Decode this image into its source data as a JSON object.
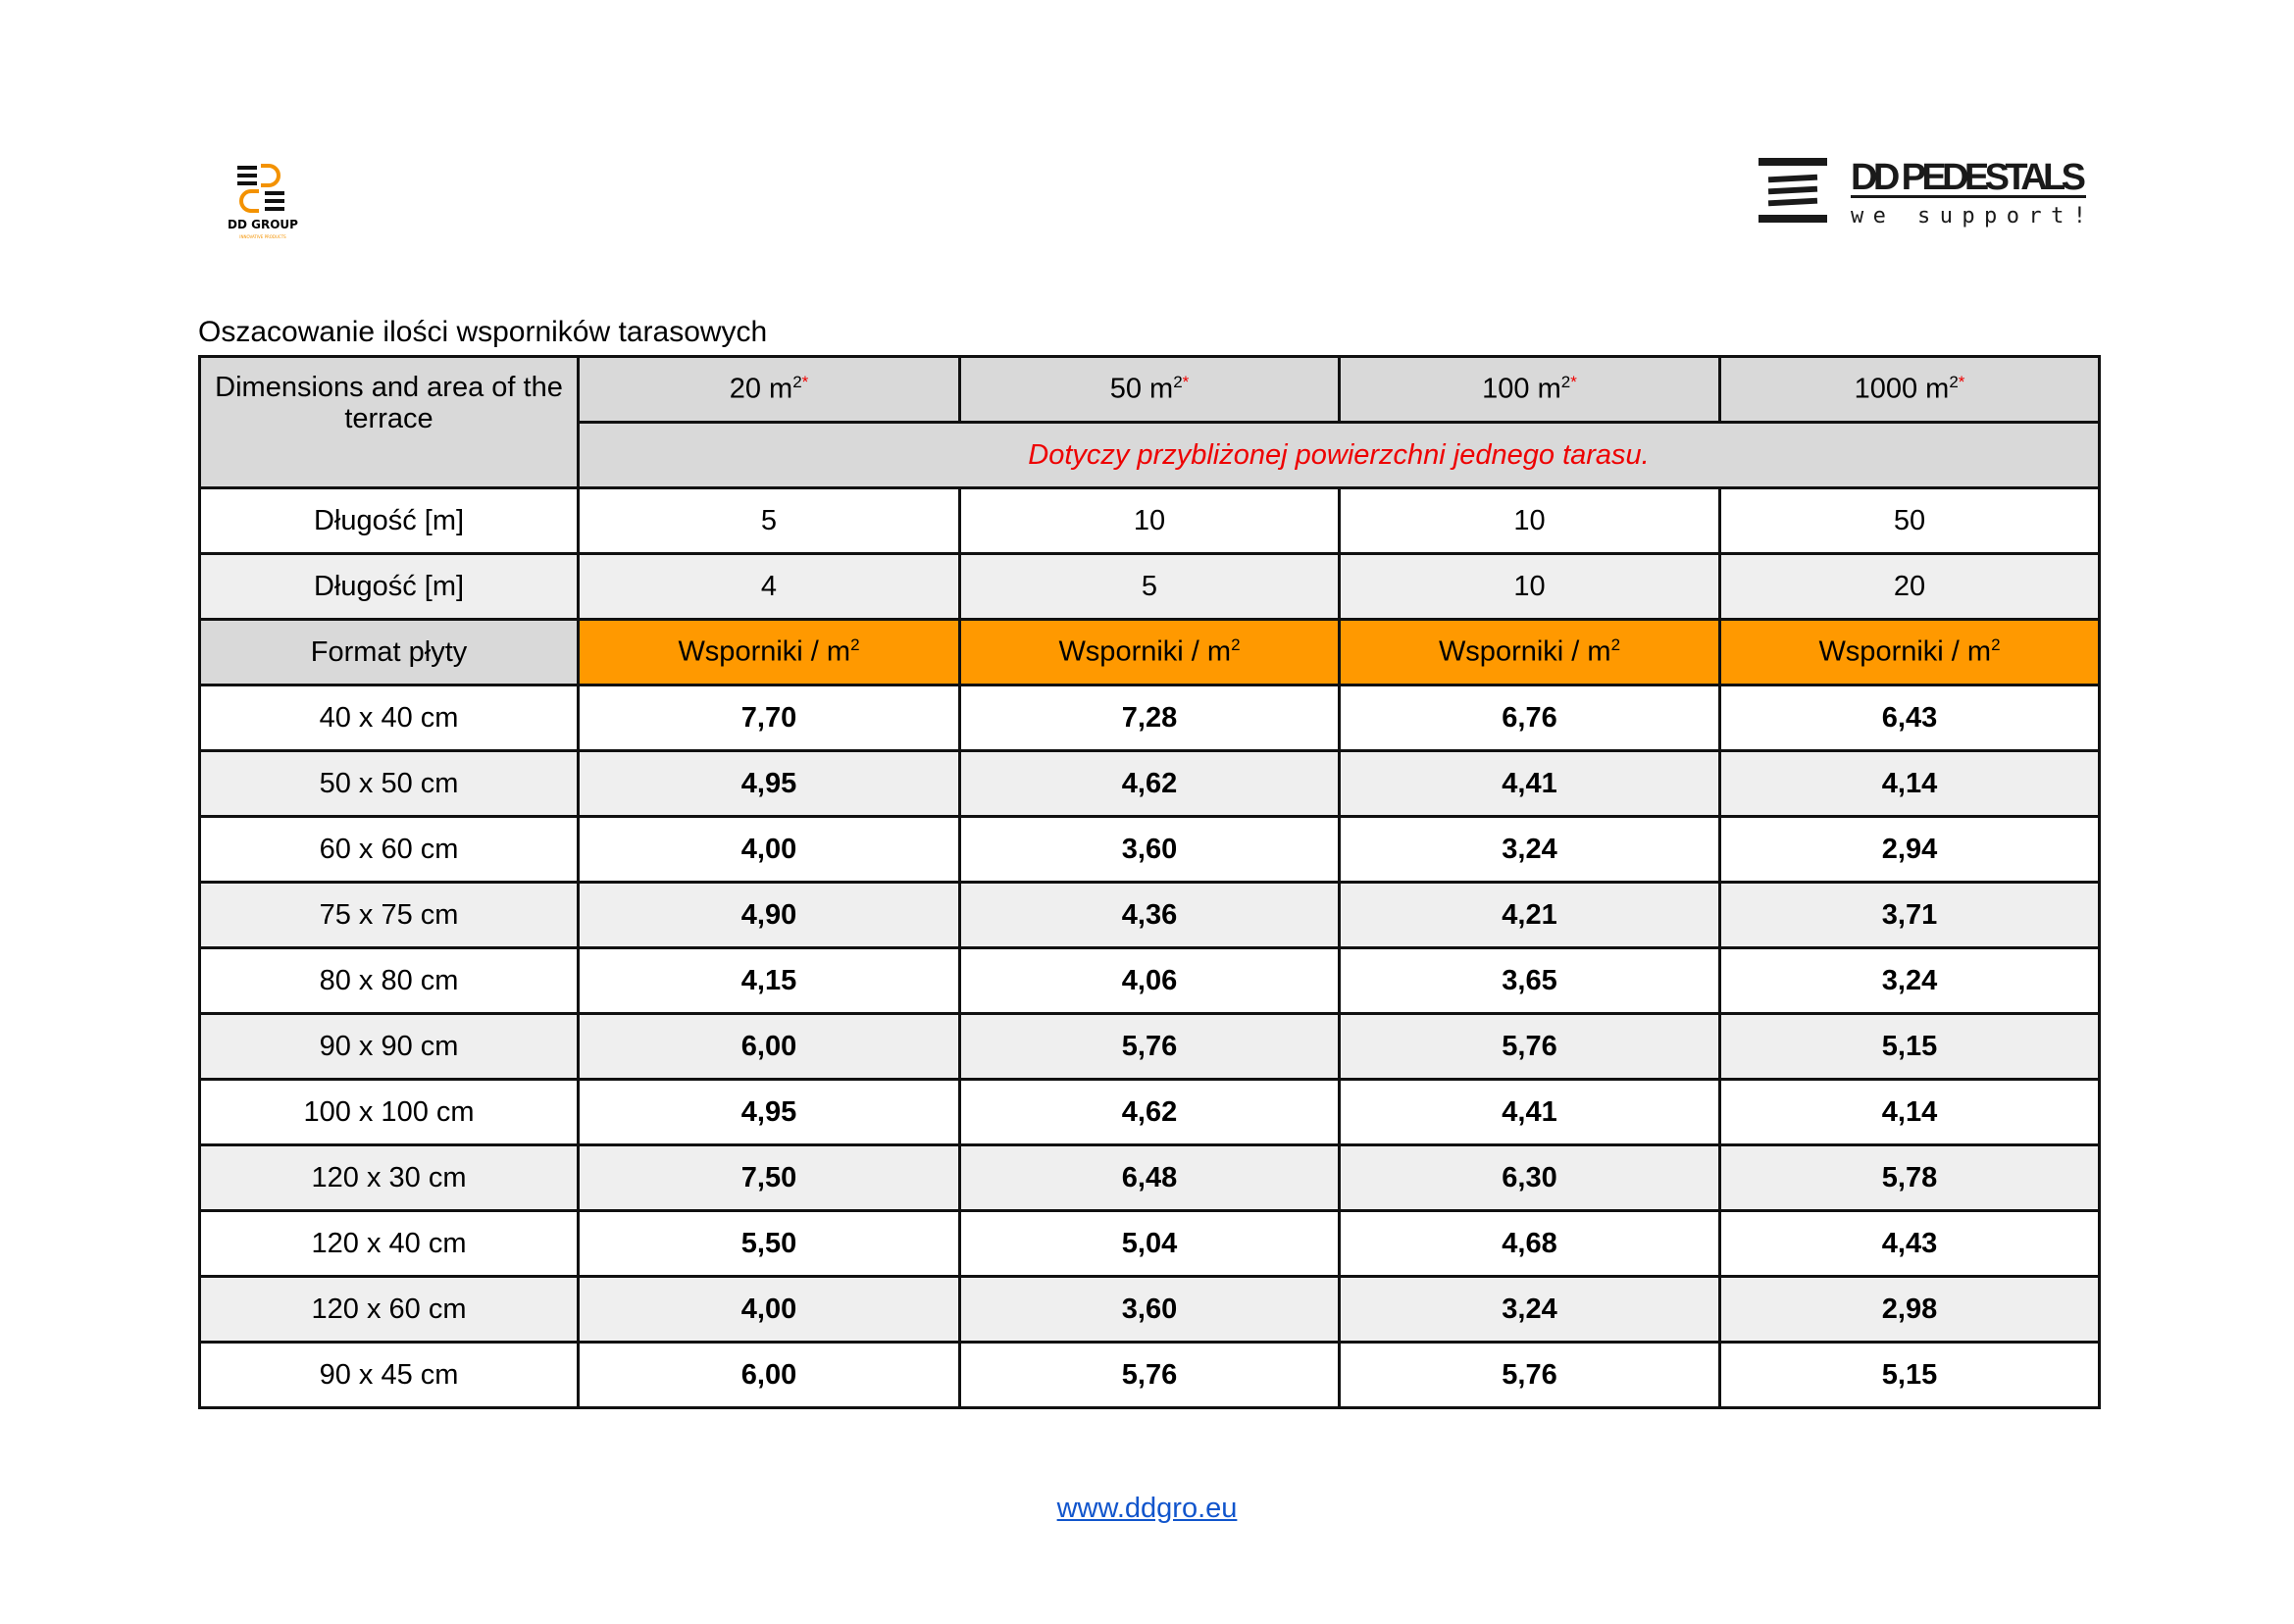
{
  "logos": {
    "left_text": "DD GROUP",
    "left_tagline": "INNOVATIVE PRODUCTS",
    "right_text": "DD PEDESTALS",
    "right_tagline": "we support!"
  },
  "title": "Oszacowanie ilości wsporników tarasowych",
  "table": {
    "corner": "Dimensions and area of the terrace",
    "areas": [
      "20 m",
      "50 m",
      "100 m",
      "1000 m"
    ],
    "sup": "2",
    "star": "*",
    "note": "Dotyczy przybliżonej powierzchni jednego tarasu.",
    "dims": [
      {
        "label": "Długość [m]",
        "values": [
          "5",
          "10",
          "10",
          "50"
        ]
      },
      {
        "label": "Długość [m]",
        "values": [
          "4",
          "5",
          "10",
          "20"
        ]
      }
    ],
    "format_label": "Format płyty",
    "unit_label": "Wsporniki / m",
    "rows": [
      {
        "format": "40 x 40 cm",
        "values": [
          "7,70",
          "7,28",
          "6,76",
          "6,43"
        ]
      },
      {
        "format": "50 x 50 cm",
        "values": [
          "4,95",
          "4,62",
          "4,41",
          "4,14"
        ]
      },
      {
        "format": "60 x 60 cm",
        "values": [
          "4,00",
          "3,60",
          "3,24",
          "2,94"
        ]
      },
      {
        "format": "75 x 75 cm",
        "values": [
          "4,90",
          "4,36",
          "4,21",
          "3,71"
        ]
      },
      {
        "format": "80 x 80 cm",
        "values": [
          "4,15",
          "4,06",
          "3,65",
          "3,24"
        ]
      },
      {
        "format": "90 x 90 cm",
        "values": [
          "6,00",
          "5,76",
          "5,76",
          "5,15"
        ]
      },
      {
        "format": "100 x 100 cm",
        "values": [
          "4,95",
          "4,62",
          "4,41",
          "4,14"
        ]
      },
      {
        "format": "120 x 30 cm",
        "values": [
          "7,50",
          "6,48",
          "6,30",
          "5,78"
        ]
      },
      {
        "format": "120 x 40 cm",
        "values": [
          "5,50",
          "5,04",
          "4,68",
          "4,43"
        ]
      },
      {
        "format": "120 x 60 cm",
        "values": [
          "4,00",
          "3,60",
          "3,24",
          "2,98"
        ]
      },
      {
        "format": "90 x 45 cm",
        "values": [
          "6,00",
          "5,76",
          "5,76",
          "5,15"
        ]
      }
    ]
  },
  "footer": {
    "link": "www.ddgro.eu"
  },
  "colors": {
    "orange": "#ff9900",
    "header_gray": "#d9d9d9",
    "note_red": "#ee0000",
    "link_blue": "#1155cc"
  }
}
